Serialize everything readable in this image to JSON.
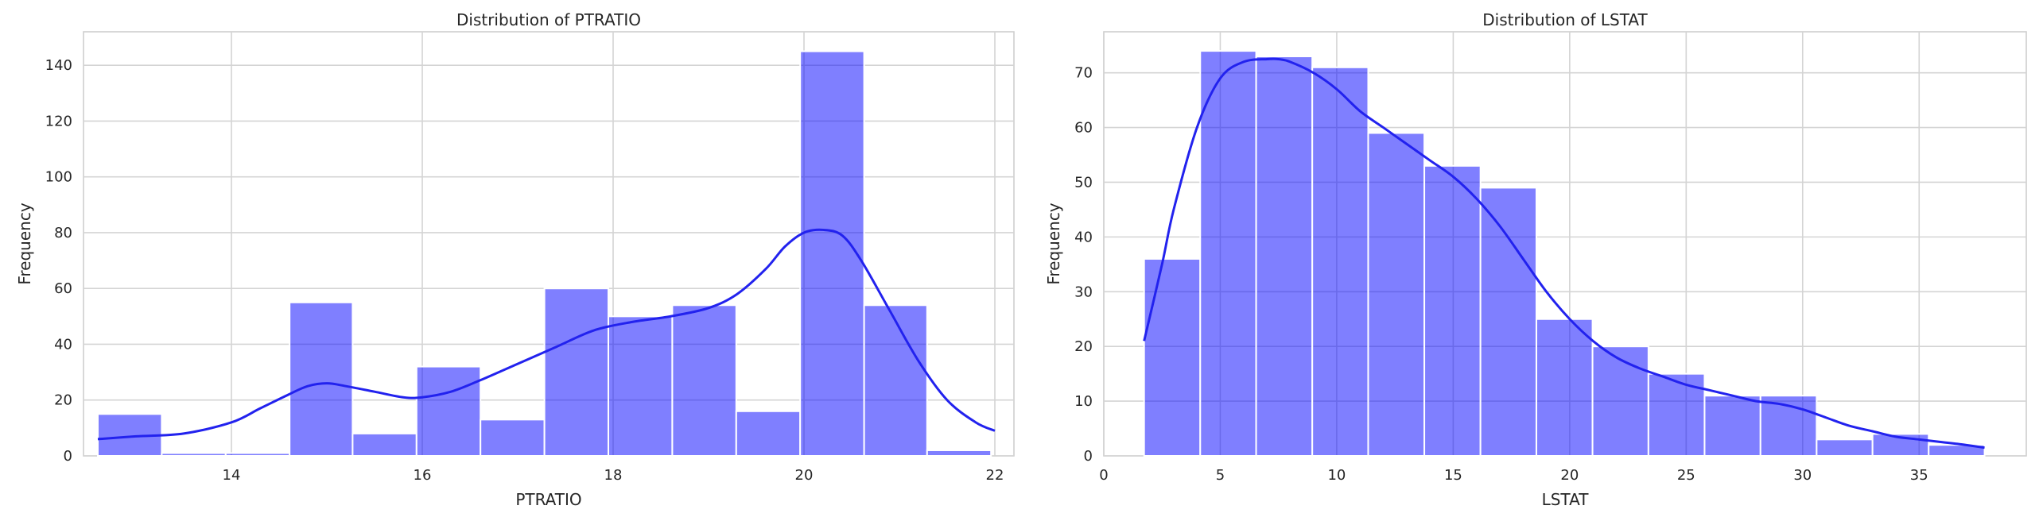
{
  "chart_data": [
    {
      "type": "bar",
      "subtype": "histogram-with-kde",
      "title": "Distribution of PTRATIO",
      "xlabel": "PTRATIO",
      "ylabel": "Frequency",
      "xlim": [
        12.45,
        22.2
      ],
      "ylim": [
        0,
        152
      ],
      "xticks": [
        14,
        16,
        18,
        20,
        22
      ],
      "yticks": [
        0,
        20,
        40,
        60,
        80,
        100,
        120,
        140
      ],
      "grid": true,
      "bins": [
        {
          "x0": 12.6,
          "x1": 13.27,
          "value": 15
        },
        {
          "x0": 13.27,
          "x1": 13.94,
          "value": 1
        },
        {
          "x0": 13.94,
          "x1": 14.61,
          "value": 1
        },
        {
          "x0": 14.61,
          "x1": 15.27,
          "value": 55
        },
        {
          "x0": 15.27,
          "x1": 15.94,
          "value": 8
        },
        {
          "x0": 15.94,
          "x1": 16.61,
          "value": 32
        },
        {
          "x0": 16.61,
          "x1": 17.28,
          "value": 13
        },
        {
          "x0": 17.28,
          "x1": 17.95,
          "value": 60
        },
        {
          "x0": 17.95,
          "x1": 18.62,
          "value": 50
        },
        {
          "x0": 18.62,
          "x1": 19.29,
          "value": 54
        },
        {
          "x0": 19.29,
          "x1": 19.96,
          "value": 16
        },
        {
          "x0": 19.96,
          "x1": 20.63,
          "value": 145
        },
        {
          "x0": 20.63,
          "x1": 21.29,
          "value": 54
        },
        {
          "x0": 21.29,
          "x1": 21.96,
          "value": 2
        }
      ],
      "kde": {
        "x": [
          12.6,
          13.0,
          13.5,
          14.0,
          14.3,
          14.6,
          14.8,
          15.0,
          15.2,
          15.5,
          15.8,
          16.0,
          16.3,
          16.6,
          17.0,
          17.4,
          17.8,
          18.2,
          18.6,
          19.0,
          19.3,
          19.6,
          19.8,
          20.0,
          20.2,
          20.4,
          20.6,
          20.9,
          21.2,
          21.5,
          21.8,
          22.0
        ],
        "y": [
          6,
          7,
          8,
          12,
          17,
          22,
          25,
          26,
          25,
          23,
          21,
          21,
          23,
          27,
          33,
          39,
          45,
          48,
          50,
          53,
          58,
          67,
          75,
          80,
          81,
          79,
          70,
          52,
          34,
          20,
          12,
          9
        ]
      },
      "colors": {
        "bar": "#0000ff",
        "kde": "#2222ee"
      }
    },
    {
      "type": "bar",
      "subtype": "histogram-with-kde",
      "title": "Distribution of LSTAT",
      "xlabel": "LSTAT",
      "ylabel": "Frequency",
      "xlim": [
        0,
        39.6
      ],
      "ylim": [
        0,
        77.5
      ],
      "xticks": [
        0,
        5,
        10,
        15,
        20,
        25,
        30,
        35
      ],
      "yticks": [
        0,
        10,
        20,
        30,
        40,
        50,
        60,
        70
      ],
      "grid": true,
      "bins": [
        {
          "x0": 1.73,
          "x1": 4.14,
          "value": 36
        },
        {
          "x0": 4.14,
          "x1": 6.54,
          "value": 74
        },
        {
          "x0": 6.54,
          "x1": 8.95,
          "value": 73
        },
        {
          "x0": 8.95,
          "x1": 11.35,
          "value": 71
        },
        {
          "x0": 11.35,
          "x1": 13.76,
          "value": 59
        },
        {
          "x0": 13.76,
          "x1": 16.17,
          "value": 53
        },
        {
          "x0": 16.17,
          "x1": 18.57,
          "value": 49
        },
        {
          "x0": 18.57,
          "x1": 20.98,
          "value": 25
        },
        {
          "x0": 20.98,
          "x1": 23.38,
          "value": 20
        },
        {
          "x0": 23.38,
          "x1": 25.79,
          "value": 15
        },
        {
          "x0": 25.79,
          "x1": 28.19,
          "value": 11
        },
        {
          "x0": 28.19,
          "x1": 30.6,
          "value": 11
        },
        {
          "x0": 30.6,
          "x1": 33.0,
          "value": 3
        },
        {
          "x0": 33.0,
          "x1": 35.41,
          "value": 4
        },
        {
          "x0": 35.41,
          "x1": 37.81,
          "value": 2
        }
      ],
      "kde": {
        "x": [
          1.73,
          2.5,
          3.0,
          4.0,
          5.0,
          6.0,
          7.0,
          7.5,
          8.0,
          9.0,
          10.0,
          11.0,
          12.0,
          13.0,
          14.0,
          15.0,
          16.0,
          17.0,
          18.0,
          19.0,
          20.0,
          21.0,
          22.0,
          23.0,
          24.0,
          25.0,
          26.0,
          27.0,
          28.0,
          29.0,
          30.0,
          31.0,
          32.0,
          33.0,
          34.0,
          35.0,
          36.0,
          37.0,
          37.81
        ],
        "y": [
          21,
          35,
          45,
          60,
          69,
          72,
          72.5,
          72.5,
          72,
          70,
          67,
          63,
          60,
          57,
          54,
          51,
          47,
          42,
          36,
          30,
          25,
          21,
          18,
          16,
          14.5,
          13,
          12,
          11,
          10,
          9.5,
          8.5,
          7,
          5.5,
          4.5,
          3.5,
          3,
          2.5,
          2,
          1.5
        ]
      },
      "colors": {
        "bar": "#0000ff",
        "kde": "#2222ee"
      }
    }
  ]
}
